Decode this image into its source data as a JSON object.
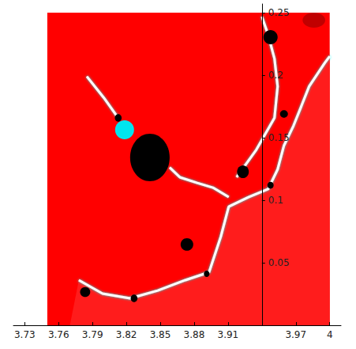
{
  "chart_data": {
    "type": "fractal",
    "xlim": [
      3.72,
      4.01
    ],
    "ylim": [
      0,
      0.257
    ],
    "xticks": [
      3.73,
      3.76,
      3.79,
      3.82,
      3.85,
      3.88,
      3.91,
      3.97,
      4
    ],
    "yticks": [
      0.05,
      0.1,
      0.15,
      0.2,
      0.25
    ],
    "y_axis_at": 3.94,
    "grid": false,
    "extent": {
      "x": [
        3.75,
        4
      ],
      "y": [
        0,
        0.25
      ]
    },
    "color": "#ff0000",
    "regions": [
      {
        "color": "#ff1c1c",
        "x": [
          3.7779,
          3.7989,
          3.8233,
          3.8478,
          3.8722,
          3.8932,
          3.9036,
          3.9106,
          3.9281,
          3.9455,
          3.9539,
          3.9595,
          3.9679,
          3.9749,
          3.9818,
          3.9888,
          3.9958,
          4,
          4,
          3.77
        ],
        "y": [
          0.0361,
          0.0253,
          0.0215,
          0.0278,
          0.0361,
          0.0424,
          0.0709,
          0.0949,
          0.1025,
          0.1089,
          0.1247,
          0.1437,
          0.1595,
          0.1753,
          0.1911,
          0.2006,
          0.2101,
          0.2152,
          0,
          0
        ]
      }
    ],
    "filaments": [
      {
        "color": "#ffffff",
        "x": [
          3.7779,
          3.7989,
          3.8233,
          3.8478,
          3.8722,
          3.8932,
          3.9036,
          3.9106,
          3.9281,
          3.9455,
          3.9539,
          3.9595,
          3.9679,
          3.9749,
          3.9818,
          3.9888,
          3.9958,
          4
        ],
        "y": [
          0.0361,
          0.0253,
          0.0215,
          0.0278,
          0.0361,
          0.0424,
          0.0709,
          0.0949,
          0.1025,
          0.1089,
          0.1247,
          0.1437,
          0.1595,
          0.1753,
          0.1911,
          0.2006,
          0.2101,
          0.2152
        ]
      },
      {
        "color": "#ffffff",
        "x": [
          3.8583,
          3.8673,
          3.8827,
          3.8966,
          3.9106
        ],
        "y": [
          0.1262,
          0.1184,
          0.1139,
          0.1101,
          0.1025
        ]
      },
      {
        "color": "#ffffff",
        "x": [
          3.9176,
          3.9351,
          3.9511,
          3.9539,
          3.9511,
          3.9455,
          3.94
        ],
        "y": [
          0.1184,
          0.1405,
          0.1658,
          0.1911,
          0.2133,
          0.2323,
          0.2468
        ]
      },
      {
        "color": "#ffffff",
        "x": [
          3.8128,
          3.8,
          3.785
        ],
        "y": [
          0.1658,
          0.182,
          0.199
        ]
      }
    ],
    "components": [
      {
        "x": 3.8184,
        "y": 0.1563,
        "rx": 0.0084,
        "ry": 0.0076,
        "color": "#00e5ee"
      },
      {
        "x": 3.8408,
        "y": 0.1342,
        "rx": 0.0175,
        "ry": 0.019,
        "color": "#000000"
      },
      {
        "x": 3.8128,
        "y": 0.1658,
        "rx": 0.003,
        "ry": 0.003,
        "color": "#000000"
      },
      {
        "x": 3.8736,
        "y": 0.0646,
        "rx": 0.0056,
        "ry": 0.005,
        "color": "#000000"
      },
      {
        "x": 3.9232,
        "y": 0.1228,
        "rx": 0.0052,
        "ry": 0.0051,
        "color": "#000000"
      },
      {
        "x": 3.9476,
        "y": 0.2304,
        "rx": 0.0063,
        "ry": 0.0057,
        "color": "#000000"
      },
      {
        "x": 3.9595,
        "y": 0.169,
        "rx": 0.0035,
        "ry": 0.003,
        "color": "#000000"
      },
      {
        "x": 3.7835,
        "y": 0.0266,
        "rx": 0.0045,
        "ry": 0.004,
        "color": "#000000"
      },
      {
        "x": 3.8268,
        "y": 0.0215,
        "rx": 0.003,
        "ry": 0.003,
        "color": "#000000"
      },
      {
        "x": 3.8911,
        "y": 0.0411,
        "rx": 0.0025,
        "ry": 0.0025,
        "color": "#000000"
      },
      {
        "x": 3.9476,
        "y": 0.112,
        "rx": 0.0028,
        "ry": 0.0028,
        "color": "#000000"
      },
      {
        "x": 3.986,
        "y": 0.244,
        "rx": 0.01,
        "ry": 0.006,
        "color": "#c00000"
      }
    ]
  }
}
